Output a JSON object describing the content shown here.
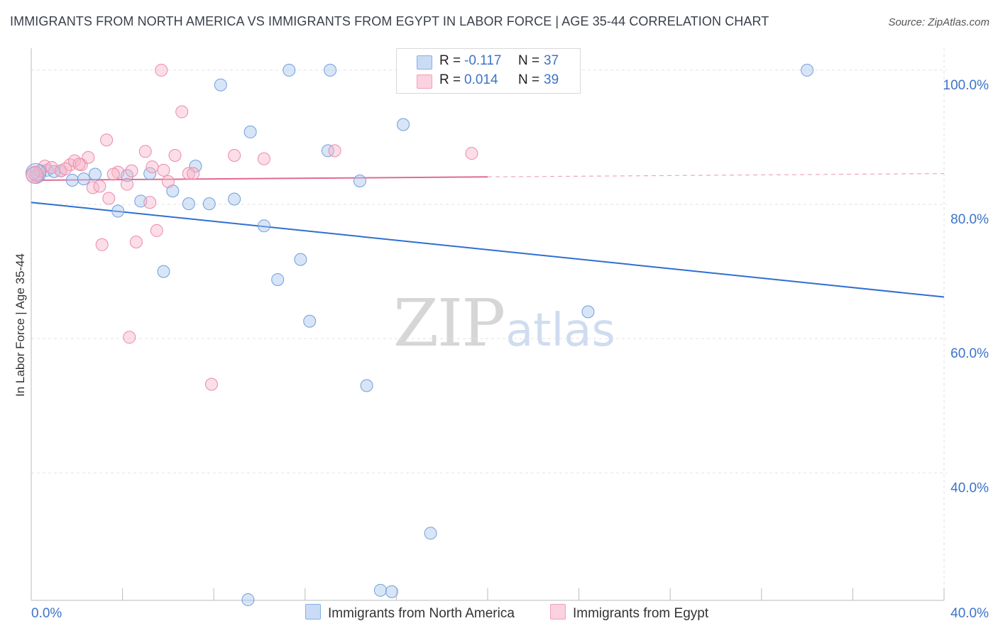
{
  "title": "IMMIGRANTS FROM NORTH AMERICA VS IMMIGRANTS FROM EGYPT IN LABOR FORCE | AGE 35-44 CORRELATION CHART",
  "source": "Source: ZipAtlas.com",
  "watermark": {
    "zip": "ZIP",
    "atlas": "atlas"
  },
  "legend": {
    "rows": [
      {
        "r_label": "R =",
        "r_value": "-0.117",
        "n_label": "N =",
        "n_value": "37",
        "color": "#a9c6ee"
      },
      {
        "r_label": "R =",
        "r_value": "0.014",
        "n_label": "N =",
        "n_value": "39",
        "color": "#f6b5c9"
      }
    ]
  },
  "bottom_legend": [
    {
      "label": "Immigrants from North America",
      "color": "#a9c6ee"
    },
    {
      "label": "Immigrants from Egypt",
      "color": "#f6b5c9"
    }
  ],
  "chart_data": {
    "type": "scatter",
    "title": "IMMIGRANTS FROM NORTH AMERICA VS IMMIGRANTS FROM EGYPT IN LABOR FORCE | AGE 35-44 CORRELATION CHART",
    "xlabel": "",
    "ylabel": "In Labor Force | Age 35-44",
    "xlim": [
      0,
      40
    ],
    "ylim": [
      21,
      102
    ],
    "x_tick_labels": [
      {
        "value": 0,
        "label": "0.0%"
      },
      {
        "value": 40,
        "label": "40.0%"
      }
    ],
    "y_tick_labels": [
      {
        "value": 100,
        "label": "100.0%"
      },
      {
        "value": 80,
        "label": "80.0%"
      },
      {
        "value": 60,
        "label": "60.0%"
      },
      {
        "value": 40,
        "label": "40.0%"
      }
    ],
    "grid": true,
    "legend_position": "top-center",
    "series": [
      {
        "name": "Immigrants from North America",
        "color": "#a9c6ee",
        "stroke": "#6f9fdc",
        "trend_color": "#2f6fd0",
        "trend": {
          "x0": 0,
          "y0": 80.3,
          "x1": 40,
          "y1": 66.2
        },
        "points": [
          [
            0.3,
            84.3
          ],
          [
            0.7,
            85.1
          ],
          [
            1.3,
            85.0
          ],
          [
            1.8,
            83.6
          ],
          [
            2.3,
            83.8
          ],
          [
            2.8,
            84.5
          ],
          [
            3.8,
            79.0
          ],
          [
            4.2,
            84.3
          ],
          [
            4.8,
            80.5
          ],
          [
            5.2,
            84.6
          ],
          [
            5.8,
            70.0
          ],
          [
            6.2,
            82.0
          ],
          [
            6.9,
            80.1
          ],
          [
            7.2,
            85.7
          ],
          [
            7.8,
            80.1
          ],
          [
            8.3,
            97.8
          ],
          [
            8.9,
            80.8
          ],
          [
            9.5,
            21.1
          ],
          [
            9.6,
            90.8
          ],
          [
            10.2,
            76.8
          ],
          [
            10.8,
            68.8
          ],
          [
            11.3,
            100.0
          ],
          [
            11.8,
            71.8
          ],
          [
            12.2,
            62.6
          ],
          [
            13.1,
            100.0
          ],
          [
            13.0,
            88.0
          ],
          [
            14.4,
            83.5
          ],
          [
            14.7,
            53.0
          ],
          [
            15.3,
            22.5
          ],
          [
            15.8,
            22.3
          ],
          [
            16.3,
            91.9
          ],
          [
            17.5,
            31.0
          ],
          [
            18.7,
            100.0
          ],
          [
            24.4,
            64.0
          ],
          [
            34.0,
            100.0
          ],
          [
            0.2,
            84.8
          ],
          [
            1.0,
            84.9
          ]
        ]
      },
      {
        "name": "Immigrants from Egypt",
        "color": "#f6b5c9",
        "stroke": "#ec8aa9",
        "trend_color": "#e06b93",
        "trend": {
          "x0": 0,
          "y0": 83.6,
          "x1": 20.0,
          "y1": 84.1
        },
        "trend_dash_to": {
          "x": 40,
          "y": 84.6
        },
        "points": [
          [
            0.2,
            84.2
          ],
          [
            0.6,
            85.7
          ],
          [
            0.9,
            85.5
          ],
          [
            1.3,
            85.0
          ],
          [
            1.7,
            85.9
          ],
          [
            1.9,
            86.5
          ],
          [
            2.2,
            85.9
          ],
          [
            2.5,
            87.0
          ],
          [
            2.7,
            82.5
          ],
          [
            3.0,
            82.7
          ],
          [
            3.1,
            74.0
          ],
          [
            3.3,
            89.6
          ],
          [
            3.4,
            80.9
          ],
          [
            3.8,
            84.8
          ],
          [
            4.4,
            85.0
          ],
          [
            4.2,
            83.0
          ],
          [
            4.3,
            60.2
          ],
          [
            4.6,
            74.4
          ],
          [
            5.0,
            87.9
          ],
          [
            5.2,
            80.3
          ],
          [
            5.3,
            85.6
          ],
          [
            5.5,
            76.1
          ],
          [
            5.8,
            85.1
          ],
          [
            6.0,
            83.4
          ],
          [
            6.3,
            87.3
          ],
          [
            5.7,
            100.0
          ],
          [
            6.6,
            93.8
          ],
          [
            6.9,
            84.6
          ],
          [
            7.1,
            84.6
          ],
          [
            7.9,
            53.2
          ],
          [
            8.9,
            87.3
          ],
          [
            10.2,
            86.8
          ],
          [
            13.3,
            88.0
          ],
          [
            19.3,
            87.6
          ],
          [
            0.4,
            85.0
          ],
          [
            1.5,
            85.3
          ],
          [
            2.1,
            86.0
          ],
          [
            3.6,
            84.5
          ],
          [
            0.1,
            84.6
          ]
        ]
      }
    ]
  }
}
